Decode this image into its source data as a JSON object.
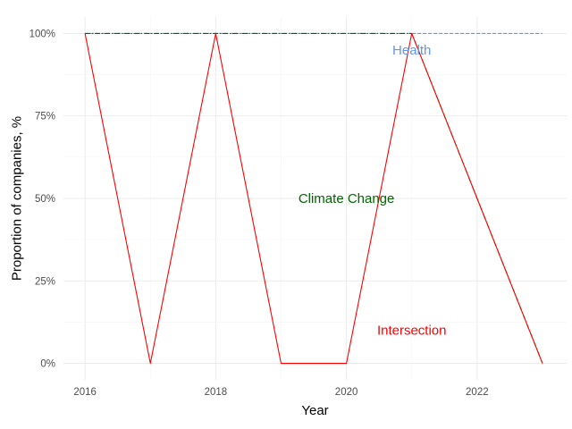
{
  "chart_data": {
    "type": "line",
    "xlabel": "Year",
    "ylabel": "Proportion of companies, %",
    "xlim": [
      2015.67,
      2023.37
    ],
    "ylim": [
      -0.05,
      1.05
    ],
    "x_ticks": [
      2016,
      2018,
      2020,
      2022
    ],
    "y_ticks": [
      0,
      0.25,
      0.5,
      0.75,
      1.0
    ],
    "y_tick_labels": [
      "0%",
      "25%",
      "50%",
      "75%",
      "100%"
    ],
    "grid": true,
    "legend": "none",
    "series": [
      {
        "name": "Health",
        "color": "#6495ED",
        "dash": "dashed",
        "x": [
          2016,
          2017,
          2018,
          2019,
          2020,
          2021,
          2022,
          2023
        ],
        "y": [
          1,
          1,
          1,
          1,
          1,
          1,
          1,
          1
        ]
      },
      {
        "name": "Climate Change",
        "color": "#006400",
        "dash": "dashdot",
        "x": [
          2016,
          2017,
          2018,
          2019,
          2020,
          2021,
          2022,
          2023
        ],
        "y": [
          1,
          1,
          1,
          1,
          1,
          1,
          0.5,
          0
        ]
      },
      {
        "name": "Intersection",
        "color": "#FF0000",
        "dash": "solid",
        "x": [
          2016,
          2017,
          2018,
          2019,
          2020,
          2021,
          2022,
          2023
        ],
        "y": [
          1,
          0,
          1,
          0,
          0,
          1,
          0.5,
          0
        ]
      }
    ],
    "annotations": [
      {
        "text": "Health",
        "x": 2021.0,
        "y": 0.95,
        "color": "#6495ED"
      },
      {
        "text": "Climate Change",
        "x": 2020.0,
        "y": 0.5,
        "color": "#006400"
      },
      {
        "text": "Intersection",
        "x": 2021.0,
        "y": 0.1,
        "color": "#FF0000"
      }
    ]
  }
}
